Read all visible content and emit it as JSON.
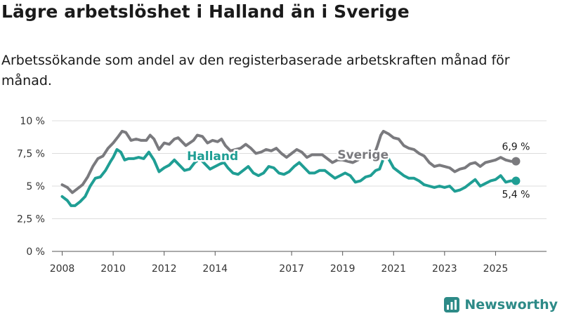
{
  "title": "Lägre arbetslöshet i Halland än i Sverige",
  "subtitle": "Arbetssökande som andel av den registerbaserade arbetskraften månad för månad.",
  "brand": {
    "name": "Newsworthy"
  },
  "colors": {
    "sverige": "#7a7a7e",
    "halland": "#1f9e94",
    "grid": "#dddddd",
    "axis": "#555555"
  },
  "chart_data": {
    "type": "line",
    "title": "Lägre arbetslöshet i Halland än i Sverige",
    "xlabel": "",
    "ylabel": "",
    "xlim": [
      2007.6,
      2027.0
    ],
    "ylim": [
      0,
      10
    ],
    "y_ticks": [
      {
        "value": 0,
        "label": "0 %"
      },
      {
        "value": 2.5,
        "label": "2,5 %"
      },
      {
        "value": 5,
        "label": "5 %"
      },
      {
        "value": 7.5,
        "label": "7,5 %"
      },
      {
        "value": 10,
        "label": "10 %"
      }
    ],
    "x_ticks": [
      {
        "value": 2008,
        "label": "2008"
      },
      {
        "value": 2010,
        "label": "2010"
      },
      {
        "value": 2012,
        "label": "2012"
      },
      {
        "value": 2014,
        "label": "2014"
      },
      {
        "value": 2017,
        "label": "2017"
      },
      {
        "value": 2019,
        "label": "2019"
      },
      {
        "value": 2021,
        "label": "2021"
      },
      {
        "value": 2023,
        "label": "2023"
      },
      {
        "value": 2025,
        "label": "2025"
      }
    ],
    "series": [
      {
        "name": "Sverige",
        "color": "#7a7a7e",
        "end_label": "6,9 %",
        "points": [
          [
            2008.0,
            5.1
          ],
          [
            2008.2,
            4.9
          ],
          [
            2008.4,
            4.5
          ],
          [
            2008.6,
            4.8
          ],
          [
            2008.8,
            5.1
          ],
          [
            2009.0,
            5.7
          ],
          [
            2009.2,
            6.5
          ],
          [
            2009.4,
            7.1
          ],
          [
            2009.6,
            7.3
          ],
          [
            2009.8,
            7.9
          ],
          [
            2010.0,
            8.3
          ],
          [
            2010.2,
            8.8
          ],
          [
            2010.35,
            9.2
          ],
          [
            2010.5,
            9.1
          ],
          [
            2010.7,
            8.5
          ],
          [
            2010.9,
            8.6
          ],
          [
            2011.1,
            8.5
          ],
          [
            2011.3,
            8.5
          ],
          [
            2011.45,
            8.9
          ],
          [
            2011.6,
            8.6
          ],
          [
            2011.8,
            7.8
          ],
          [
            2012.0,
            8.3
          ],
          [
            2012.2,
            8.2
          ],
          [
            2012.4,
            8.6
          ],
          [
            2012.55,
            8.7
          ],
          [
            2012.7,
            8.4
          ],
          [
            2012.85,
            8.1
          ],
          [
            2013.0,
            8.3
          ],
          [
            2013.15,
            8.5
          ],
          [
            2013.3,
            8.9
          ],
          [
            2013.5,
            8.8
          ],
          [
            2013.7,
            8.3
          ],
          [
            2013.9,
            8.5
          ],
          [
            2014.1,
            8.4
          ],
          [
            2014.25,
            8.6
          ],
          [
            2014.4,
            8.1
          ],
          [
            2014.6,
            7.7
          ],
          [
            2014.8,
            7.8
          ],
          [
            2015.0,
            7.9
          ],
          [
            2015.2,
            8.2
          ],
          [
            2015.4,
            7.9
          ],
          [
            2015.6,
            7.5
          ],
          [
            2015.8,
            7.6
          ],
          [
            2016.0,
            7.8
          ],
          [
            2016.2,
            7.7
          ],
          [
            2016.4,
            7.9
          ],
          [
            2016.6,
            7.5
          ],
          [
            2016.8,
            7.2
          ],
          [
            2017.0,
            7.5
          ],
          [
            2017.2,
            7.8
          ],
          [
            2017.4,
            7.6
          ],
          [
            2017.6,
            7.2
          ],
          [
            2017.8,
            7.4
          ],
          [
            2018.0,
            7.4
          ],
          [
            2018.2,
            7.4
          ],
          [
            2018.4,
            7.1
          ],
          [
            2018.6,
            6.8
          ],
          [
            2018.8,
            7.0
          ],
          [
            2019.0,
            7.0
          ],
          [
            2019.2,
            6.9
          ],
          [
            2019.4,
            6.8
          ],
          [
            2019.6,
            7.0
          ],
          [
            2019.8,
            7.4
          ],
          [
            2020.0,
            7.6
          ],
          [
            2020.2,
            7.2
          ],
          [
            2020.35,
            8.0
          ],
          [
            2020.5,
            8.9
          ],
          [
            2020.6,
            9.2
          ],
          [
            2020.8,
            9.0
          ],
          [
            2021.0,
            8.7
          ],
          [
            2021.2,
            8.6
          ],
          [
            2021.4,
            8.1
          ],
          [
            2021.6,
            7.9
          ],
          [
            2021.8,
            7.8
          ],
          [
            2022.0,
            7.5
          ],
          [
            2022.2,
            7.3
          ],
          [
            2022.4,
            6.8
          ],
          [
            2022.6,
            6.5
          ],
          [
            2022.8,
            6.6
          ],
          [
            2023.0,
            6.5
          ],
          [
            2023.2,
            6.4
          ],
          [
            2023.4,
            6.1
          ],
          [
            2023.6,
            6.3
          ],
          [
            2023.8,
            6.4
          ],
          [
            2024.0,
            6.7
          ],
          [
            2024.2,
            6.8
          ],
          [
            2024.4,
            6.5
          ],
          [
            2024.6,
            6.8
          ],
          [
            2024.8,
            6.9
          ],
          [
            2025.0,
            7.0
          ],
          [
            2025.2,
            7.2
          ],
          [
            2025.4,
            7.0
          ],
          [
            2025.6,
            6.9
          ],
          [
            2025.8,
            6.9
          ]
        ]
      },
      {
        "name": "Halland",
        "color": "#1f9e94",
        "end_label": "5,4 %",
        "points": [
          [
            2008.0,
            4.2
          ],
          [
            2008.2,
            3.9
          ],
          [
            2008.35,
            3.5
          ],
          [
            2008.5,
            3.5
          ],
          [
            2008.7,
            3.8
          ],
          [
            2008.9,
            4.2
          ],
          [
            2009.1,
            5.0
          ],
          [
            2009.3,
            5.6
          ],
          [
            2009.5,
            5.7
          ],
          [
            2009.7,
            6.2
          ],
          [
            2009.9,
            6.9
          ],
          [
            2010.0,
            7.2
          ],
          [
            2010.15,
            7.8
          ],
          [
            2010.3,
            7.6
          ],
          [
            2010.45,
            7.0
          ],
          [
            2010.6,
            7.1
          ],
          [
            2010.8,
            7.1
          ],
          [
            2011.0,
            7.2
          ],
          [
            2011.2,
            7.1
          ],
          [
            2011.4,
            7.6
          ],
          [
            2011.6,
            7.0
          ],
          [
            2011.8,
            6.1
          ],
          [
            2012.0,
            6.4
          ],
          [
            2012.2,
            6.6
          ],
          [
            2012.4,
            7.0
          ],
          [
            2012.6,
            6.6
          ],
          [
            2012.8,
            6.2
          ],
          [
            2013.0,
            6.3
          ],
          [
            2013.2,
            6.8
          ],
          [
            2013.4,
            7.1
          ],
          [
            2013.6,
            6.7
          ],
          [
            2013.8,
            6.3
          ],
          [
            2014.0,
            6.5
          ],
          [
            2014.2,
            6.7
          ],
          [
            2014.35,
            6.8
          ],
          [
            2014.5,
            6.4
          ],
          [
            2014.7,
            6.0
          ],
          [
            2014.9,
            5.9
          ],
          [
            2015.1,
            6.2
          ],
          [
            2015.3,
            6.5
          ],
          [
            2015.5,
            6.0
          ],
          [
            2015.7,
            5.8
          ],
          [
            2015.9,
            6.0
          ],
          [
            2016.1,
            6.5
          ],
          [
            2016.3,
            6.4
          ],
          [
            2016.5,
            6.0
          ],
          [
            2016.7,
            5.9
          ],
          [
            2016.9,
            6.1
          ],
          [
            2017.1,
            6.5
          ],
          [
            2017.3,
            6.8
          ],
          [
            2017.5,
            6.4
          ],
          [
            2017.7,
            6.0
          ],
          [
            2017.9,
            6.0
          ],
          [
            2018.1,
            6.2
          ],
          [
            2018.3,
            6.2
          ],
          [
            2018.5,
            5.9
          ],
          [
            2018.7,
            5.6
          ],
          [
            2018.9,
            5.8
          ],
          [
            2019.1,
            6.0
          ],
          [
            2019.3,
            5.8
          ],
          [
            2019.5,
            5.3
          ],
          [
            2019.7,
            5.4
          ],
          [
            2019.9,
            5.7
          ],
          [
            2020.1,
            5.8
          ],
          [
            2020.3,
            6.2
          ],
          [
            2020.45,
            6.3
          ],
          [
            2020.6,
            7.1
          ],
          [
            2020.8,
            7.1
          ],
          [
            2021.0,
            6.4
          ],
          [
            2021.2,
            6.1
          ],
          [
            2021.4,
            5.8
          ],
          [
            2021.6,
            5.6
          ],
          [
            2021.8,
            5.6
          ],
          [
            2022.0,
            5.4
          ],
          [
            2022.2,
            5.1
          ],
          [
            2022.4,
            5.0
          ],
          [
            2022.6,
            4.9
          ],
          [
            2022.8,
            5.0
          ],
          [
            2023.0,
            4.9
          ],
          [
            2023.2,
            5.0
          ],
          [
            2023.4,
            4.6
          ],
          [
            2023.6,
            4.7
          ],
          [
            2023.8,
            4.9
          ],
          [
            2024.0,
            5.2
          ],
          [
            2024.2,
            5.5
          ],
          [
            2024.4,
            5.0
          ],
          [
            2024.6,
            5.2
          ],
          [
            2024.8,
            5.4
          ],
          [
            2025.0,
            5.5
          ],
          [
            2025.2,
            5.8
          ],
          [
            2025.4,
            5.3
          ],
          [
            2025.6,
            5.4
          ],
          [
            2025.8,
            5.4
          ]
        ]
      }
    ],
    "annotations": [
      {
        "text": "Halland",
        "series": "Halland",
        "x": 2013.9,
        "y": 7.0
      },
      {
        "text": "Sverige",
        "series": "Sverige",
        "x": 2019.8,
        "y": 7.1
      }
    ]
  }
}
